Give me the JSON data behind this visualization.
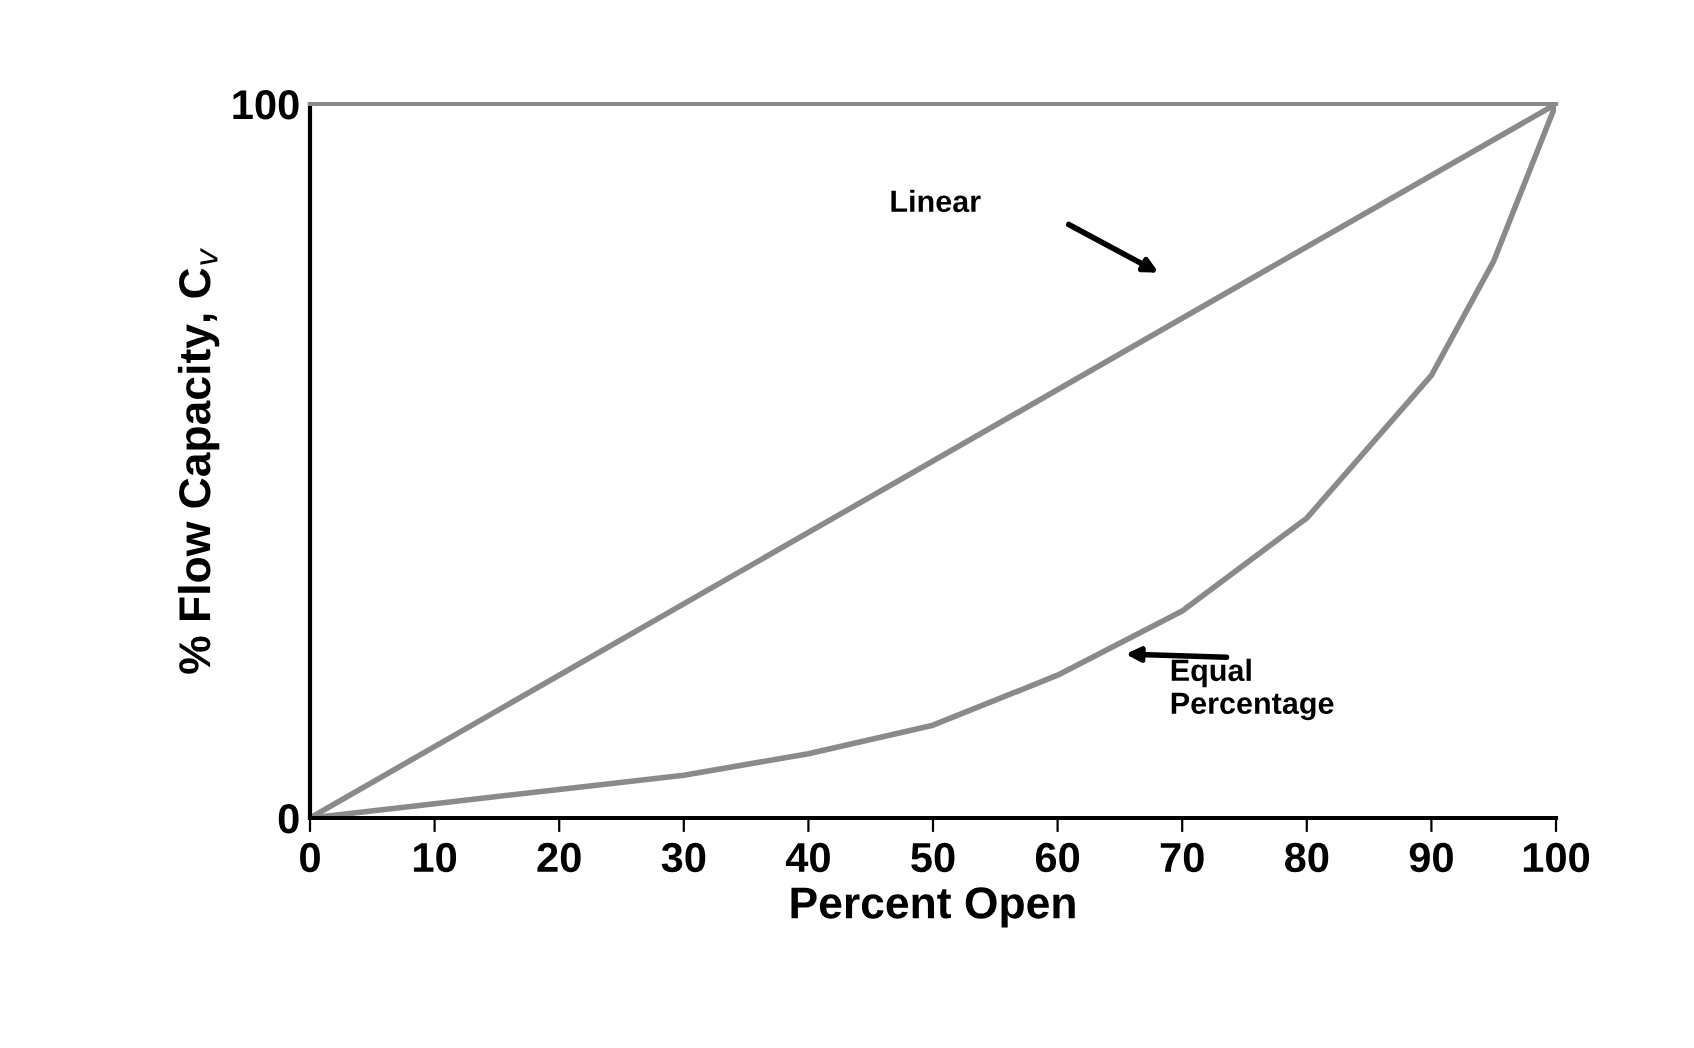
{
  "chart_data": {
    "type": "line",
    "xlabel": "Percent Open",
    "ylabel": "% Flow Capacity, C$_{v}$",
    "x": [
      0,
      10,
      20,
      30,
      40,
      50,
      60,
      70,
      80,
      90,
      95,
      100
    ],
    "series": [
      {
        "color": "#8a8a8a",
        "x": [
          0,
          100
        ],
        "values": [
          0,
          100
        ]
      },
      {
        "color": "#8a8a8a",
        "values": [
          0,
          2,
          4,
          6,
          9,
          13,
          20,
          29,
          42,
          62,
          78,
          100
        ]
      }
    ],
    "annotations": [
      "Linear",
      "Equal\nPercentage"
    ],
    "xlim": [
      0,
      100
    ],
    "ylim": [
      0,
      100
    ],
    "xticks": [
      0,
      10,
      20,
      30,
      40,
      50,
      60,
      70,
      80,
      90,
      100
    ],
    "yticks": [
      0,
      100
    ],
    "grid": false,
    "marker": "none",
    "line_style": "solid"
  }
}
